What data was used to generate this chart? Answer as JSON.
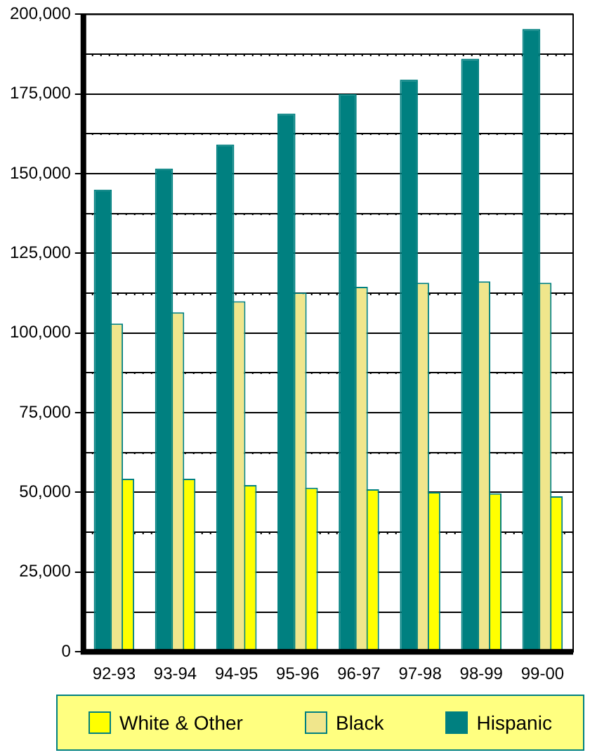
{
  "chart_data": {
    "type": "bar",
    "categories": [
      "92-93",
      "93-94",
      "94-95",
      "95-96",
      "96-97",
      "97-98",
      "98-99",
      "99-00"
    ],
    "series": [
      {
        "name": "White & Other",
        "color": "#ffff00",
        "values": [
          54300,
          54300,
          52300,
          51500,
          51000,
          50100,
          49700,
          48800
        ]
      },
      {
        "name": "Black",
        "color": "#f0e68c",
        "values": [
          103000,
          106500,
          110000,
          112700,
          114500,
          115800,
          116200,
          115800
        ]
      },
      {
        "name": "Hispanic",
        "color": "#008080",
        "values": [
          145000,
          151600,
          159200,
          168900,
          175000,
          179500,
          186100,
          195400
        ]
      }
    ],
    "ylim": [
      0,
      200000
    ],
    "yticks": [
      0,
      {
        "value": 12500,
        "label": null
      },
      {
        "value": 25000,
        "label": "25,000"
      },
      {
        "value": 37500,
        "label": null
      },
      {
        "value": 50000,
        "label": "50,000"
      },
      {
        "value": 62500,
        "label": null
      },
      {
        "value": 75000,
        "label": "75,000"
      },
      {
        "value": 87500,
        "label": null
      },
      {
        "value": 100000,
        "label": "100,000"
      },
      {
        "value": 112500,
        "label": null
      },
      {
        "value": 125000,
        "label": "125,000"
      },
      {
        "value": 137500,
        "label": null
      },
      {
        "value": 150000,
        "label": "150,000"
      },
      {
        "value": 162500,
        "label": null
      },
      {
        "value": 175000,
        "label": "175,000"
      },
      {
        "value": 187500,
        "label": null
      },
      {
        "value": 200000,
        "label": "200,000"
      }
    ],
    "grid": "y",
    "legend": "bottom"
  }
}
